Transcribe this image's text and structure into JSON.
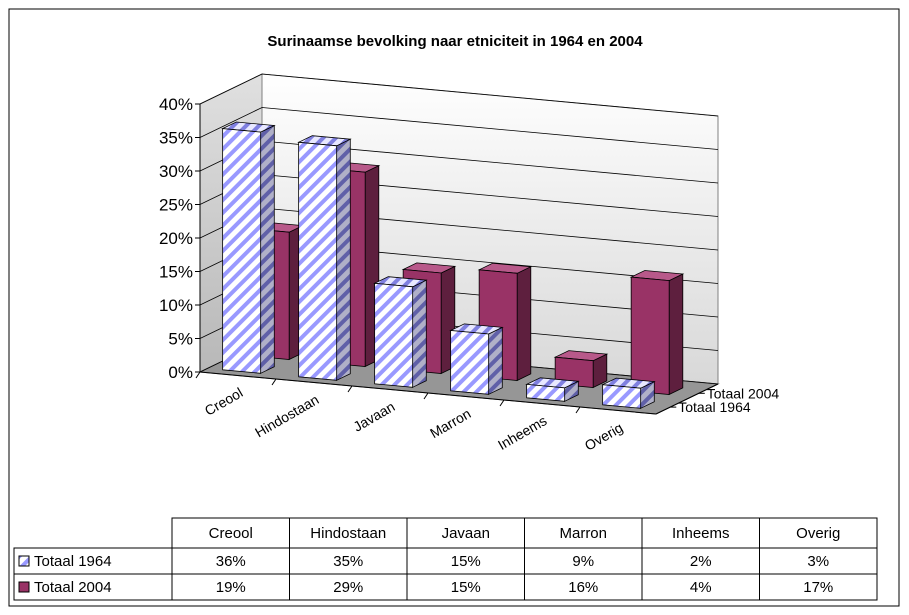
{
  "chart_data": {
    "type": "bar3d",
    "title": "Surinaamse bevolking naar etniciteit in 1964 en 2004",
    "categories": [
      "Creool",
      "Hindostaan",
      "Javaan",
      "Marron",
      "Inheems",
      "Overig"
    ],
    "series": [
      {
        "name": "Totaal 1964",
        "color": "#9999ff",
        "values": [
          36,
          35,
          15,
          9,
          2,
          3
        ],
        "value_labels": [
          "36%",
          "35%",
          "15%",
          "9%",
          "2%",
          "3%"
        ]
      },
      {
        "name": "Totaal 2004",
        "color": "#993366",
        "values": [
          19,
          29,
          15,
          16,
          4,
          17
        ],
        "value_labels": [
          "19%",
          "29%",
          "15%",
          "16%",
          "4%",
          "17%"
        ]
      }
    ],
    "ylim": [
      0,
      40
    ],
    "yticks": [
      {
        "value": 0,
        "label": "0%"
      },
      {
        "value": 5,
        "label": "5%"
      },
      {
        "value": 10,
        "label": "10%"
      },
      {
        "value": 15,
        "label": "15%"
      },
      {
        "value": 20,
        "label": "20%"
      },
      {
        "value": 25,
        "label": "25%"
      },
      {
        "value": 30,
        "label": "30%"
      },
      {
        "value": 35,
        "label": "35%"
      },
      {
        "value": 40,
        "label": "40%"
      }
    ],
    "grid": true,
    "data_table": true
  }
}
